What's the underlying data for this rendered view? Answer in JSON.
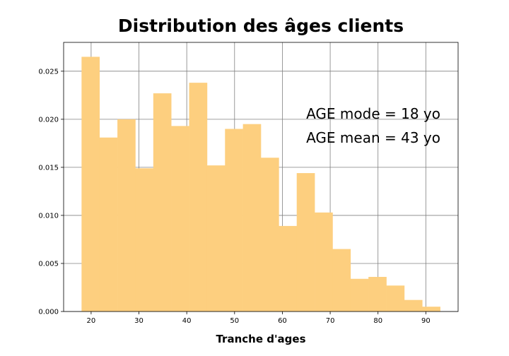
{
  "chart_data": {
    "type": "bar",
    "title": "Distribution des âges clients",
    "xlabel": "Tranche d'ages",
    "ylabel": "",
    "xlim": [
      14.25,
      96.75
    ],
    "ylim": [
      0,
      0.028
    ],
    "xticks": [
      20,
      30,
      40,
      50,
      60,
      70,
      80,
      90
    ],
    "yticks": [
      0.0,
      0.005,
      0.01,
      0.015,
      0.02,
      0.025
    ],
    "ytick_labels": [
      "0.000",
      "0.005",
      "0.010",
      "0.015",
      "0.020",
      "0.025"
    ],
    "grid": true,
    "bar_color": "#fdcf7f",
    "bin_edges": [
      18,
      21.75,
      25.5,
      29.25,
      33,
      36.75,
      40.5,
      44.25,
      48,
      51.75,
      55.5,
      59.25,
      63,
      66.75,
      70.5,
      74.25,
      78,
      81.75,
      85.5,
      89.25,
      93
    ],
    "values": [
      0.0265,
      0.0181,
      0.02,
      0.0149,
      0.0227,
      0.0193,
      0.0238,
      0.0152,
      0.019,
      0.0195,
      0.016,
      0.0089,
      0.0144,
      0.0103,
      0.0065,
      0.0034,
      0.0036,
      0.0027,
      0.0012,
      0.0005
    ],
    "annotations": [
      "AGE mode = 18 yo",
      "AGE mean = 43 yo"
    ]
  }
}
